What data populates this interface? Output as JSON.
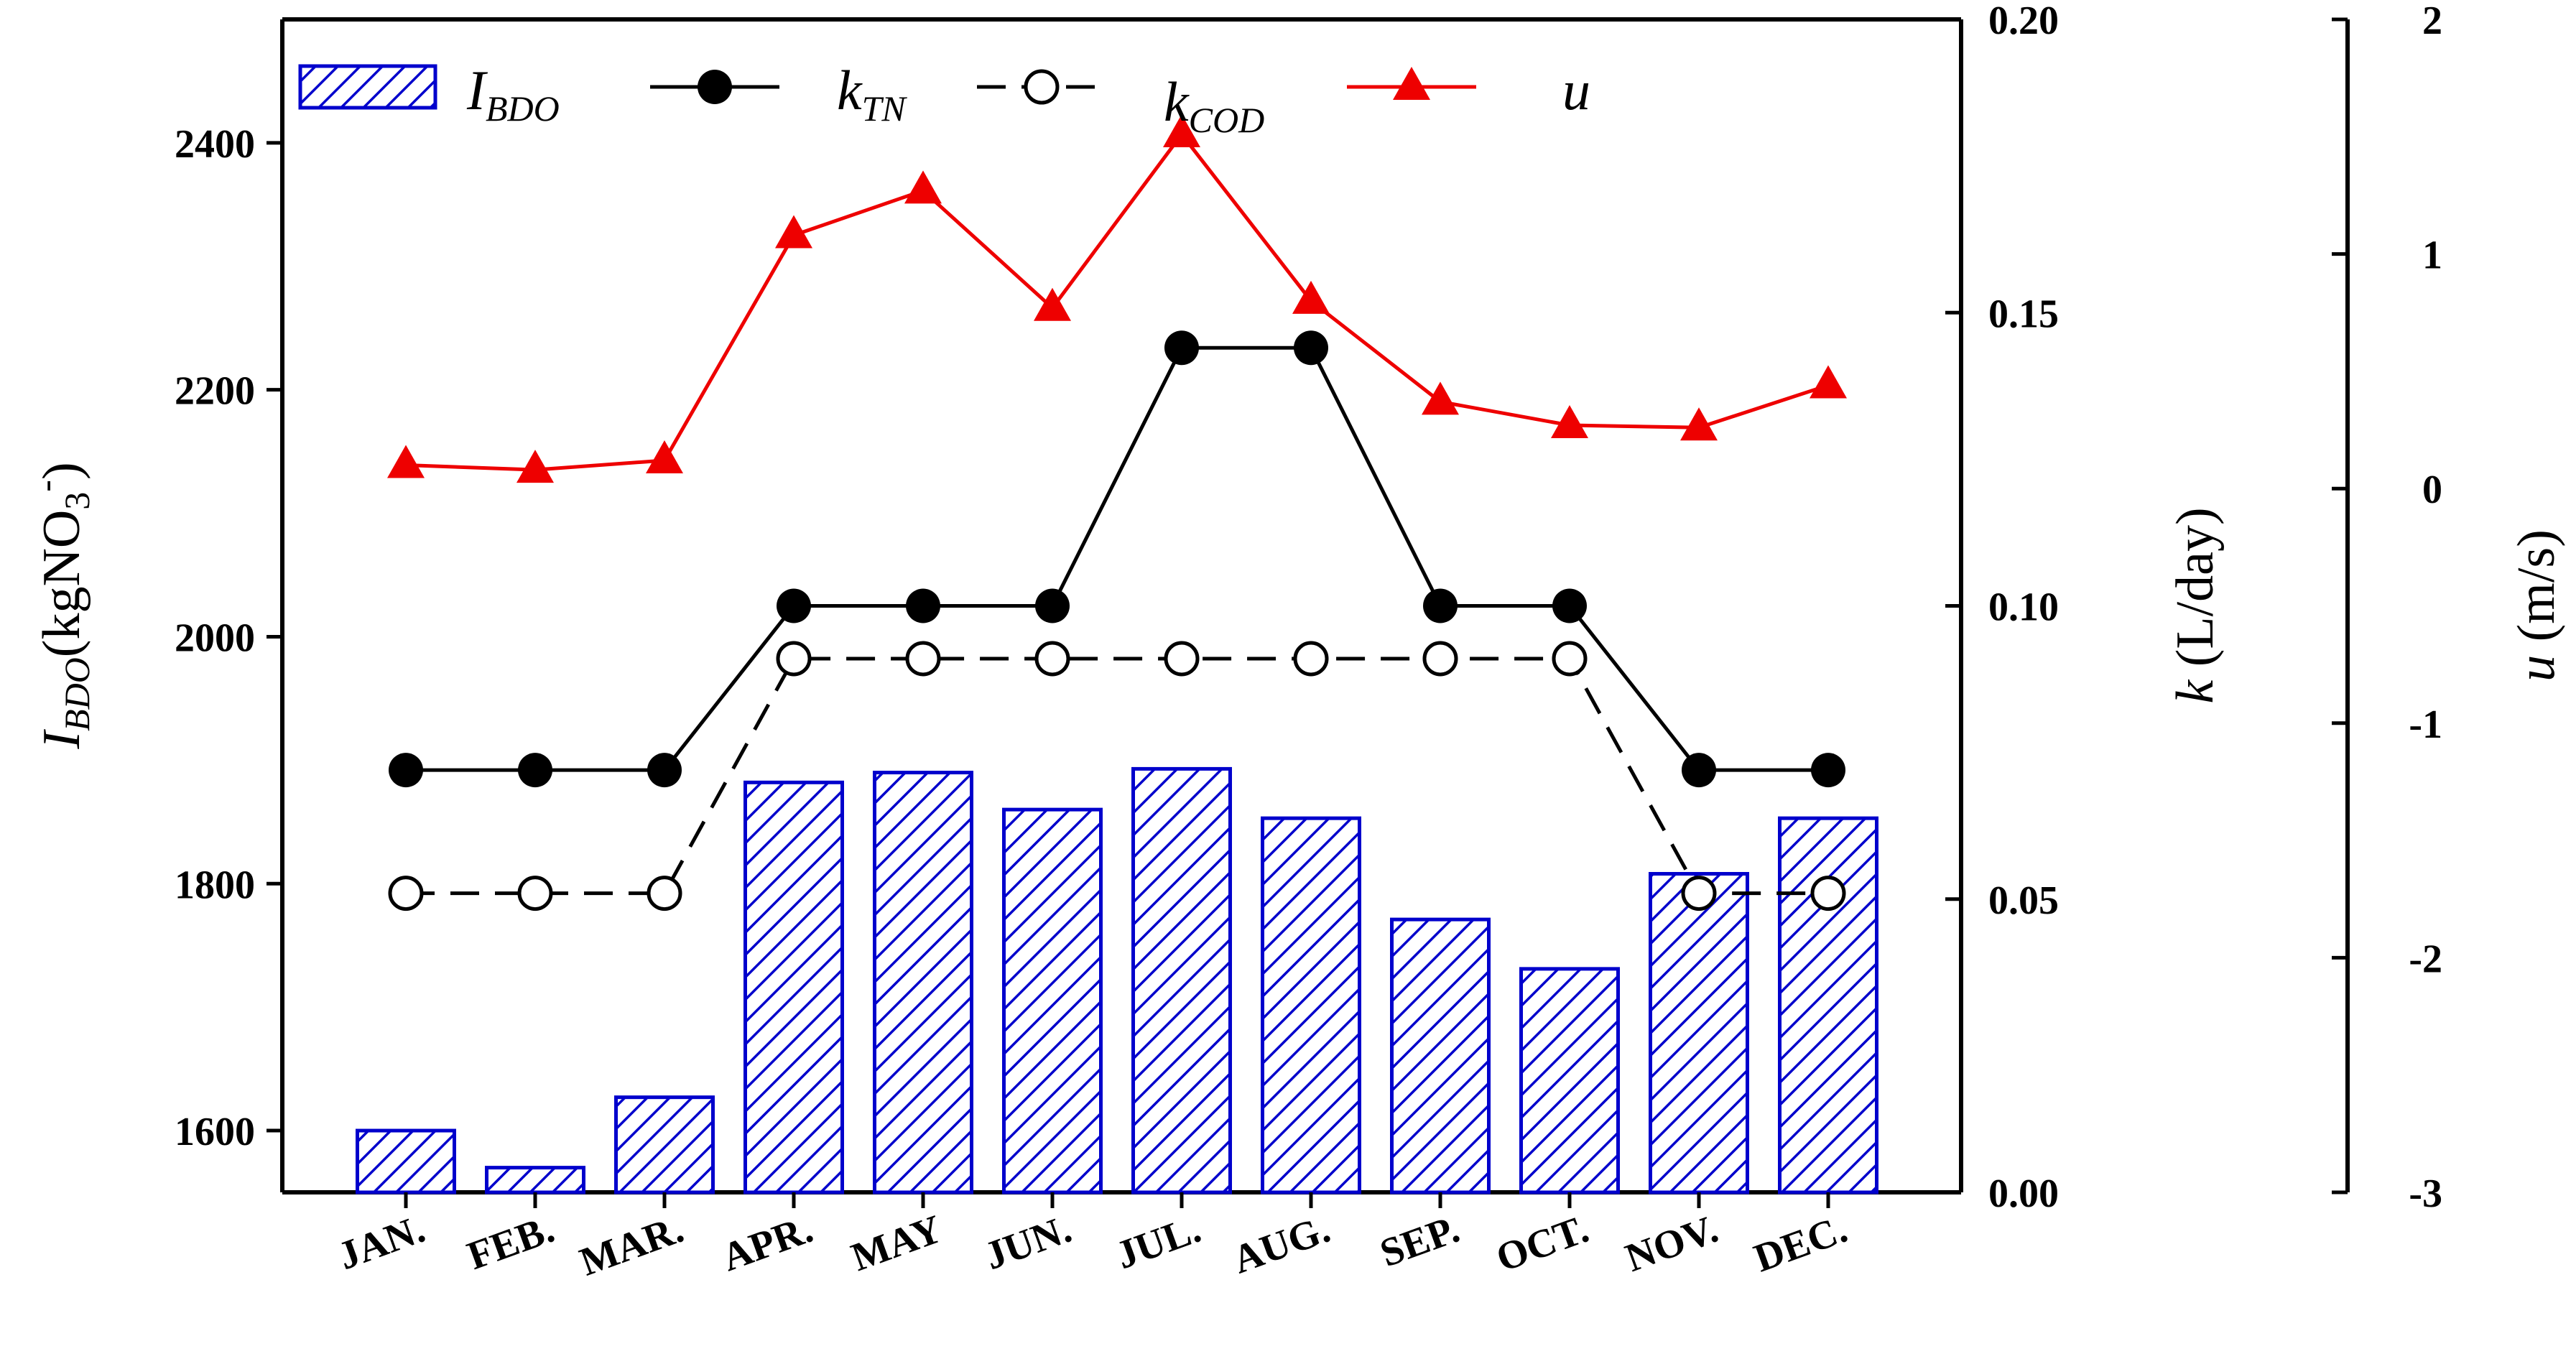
{
  "chart_data": {
    "type": "bar+line",
    "categories": [
      "JAN.",
      "FEB.",
      "MAR.",
      "APR.",
      "MAY",
      "JUN.",
      "JUL.",
      "AUG.",
      "SEP.",
      "OCT.",
      "NOV.",
      "DEC."
    ],
    "series": [
      {
        "name": "I_BDO",
        "type": "bar",
        "axis": "left",
        "color": "#0000cc",
        "values": [
          1600,
          1570,
          1627,
          1882,
          1890,
          1860,
          1893,
          1853,
          1771,
          1731,
          1808,
          1853
        ]
      },
      {
        "name": "k_TN",
        "type": "line",
        "axis": "k",
        "marker": "filled-circle",
        "line": "solid",
        "color": "#000000",
        "values": [
          0.072,
          0.072,
          0.072,
          0.1,
          0.1,
          0.1,
          0.144,
          0.144,
          0.1,
          0.1,
          0.072,
          0.072
        ]
      },
      {
        "name": "k_COD",
        "type": "line",
        "axis": "k",
        "marker": "open-circle",
        "line": "dashed",
        "color": "#000000",
        "values": [
          0.051,
          0.051,
          0.051,
          0.091,
          0.091,
          0.091,
          0.091,
          0.091,
          0.091,
          0.091,
          0.051,
          0.051
        ]
      },
      {
        "name": "u",
        "type": "line",
        "axis": "u",
        "marker": "triangle",
        "line": "solid",
        "color": "#ee0000",
        "values": [
          0.1,
          0.08,
          0.12,
          1.08,
          1.27,
          0.77,
          1.51,
          0.8,
          0.37,
          0.27,
          0.26,
          0.44
        ]
      }
    ],
    "axes": {
      "left": {
        "label": "I_BDO(kgNO3-)",
        "label_main": "I",
        "label_sub": "BDO",
        "label_after": "(kgNO",
        "label_sub2": "3",
        "label_sup": "-",
        "label_close": ")",
        "range": [
          1550,
          2500
        ],
        "ticks": [
          "1600",
          "1800",
          "2000",
          "2200",
          "2400"
        ]
      },
      "k": {
        "label": "k (L/day)",
        "label_italic": "k",
        "label_rest": " (L/day)",
        "range": [
          0,
          0.2
        ],
        "ticks": [
          "0.00",
          "0.05",
          "0.10",
          "0.15",
          "0.20"
        ]
      },
      "u": {
        "label": "u (m/s)",
        "label_italic": "u",
        "label_rest": " (m/s)",
        "range": [
          -3,
          2
        ],
        "ticks": [
          "-3",
          "-2",
          "-1",
          "0",
          "1",
          "2"
        ]
      }
    },
    "legend": {
      "placement": "top-left",
      "entries": [
        {
          "main": "I",
          "sub": "BDO"
        },
        {
          "main": "k",
          "sub": "TN"
        },
        {
          "main": "k",
          "sub": "COD"
        },
        {
          "main": "u",
          "sub": ""
        }
      ]
    },
    "title": "",
    "grid": false
  }
}
